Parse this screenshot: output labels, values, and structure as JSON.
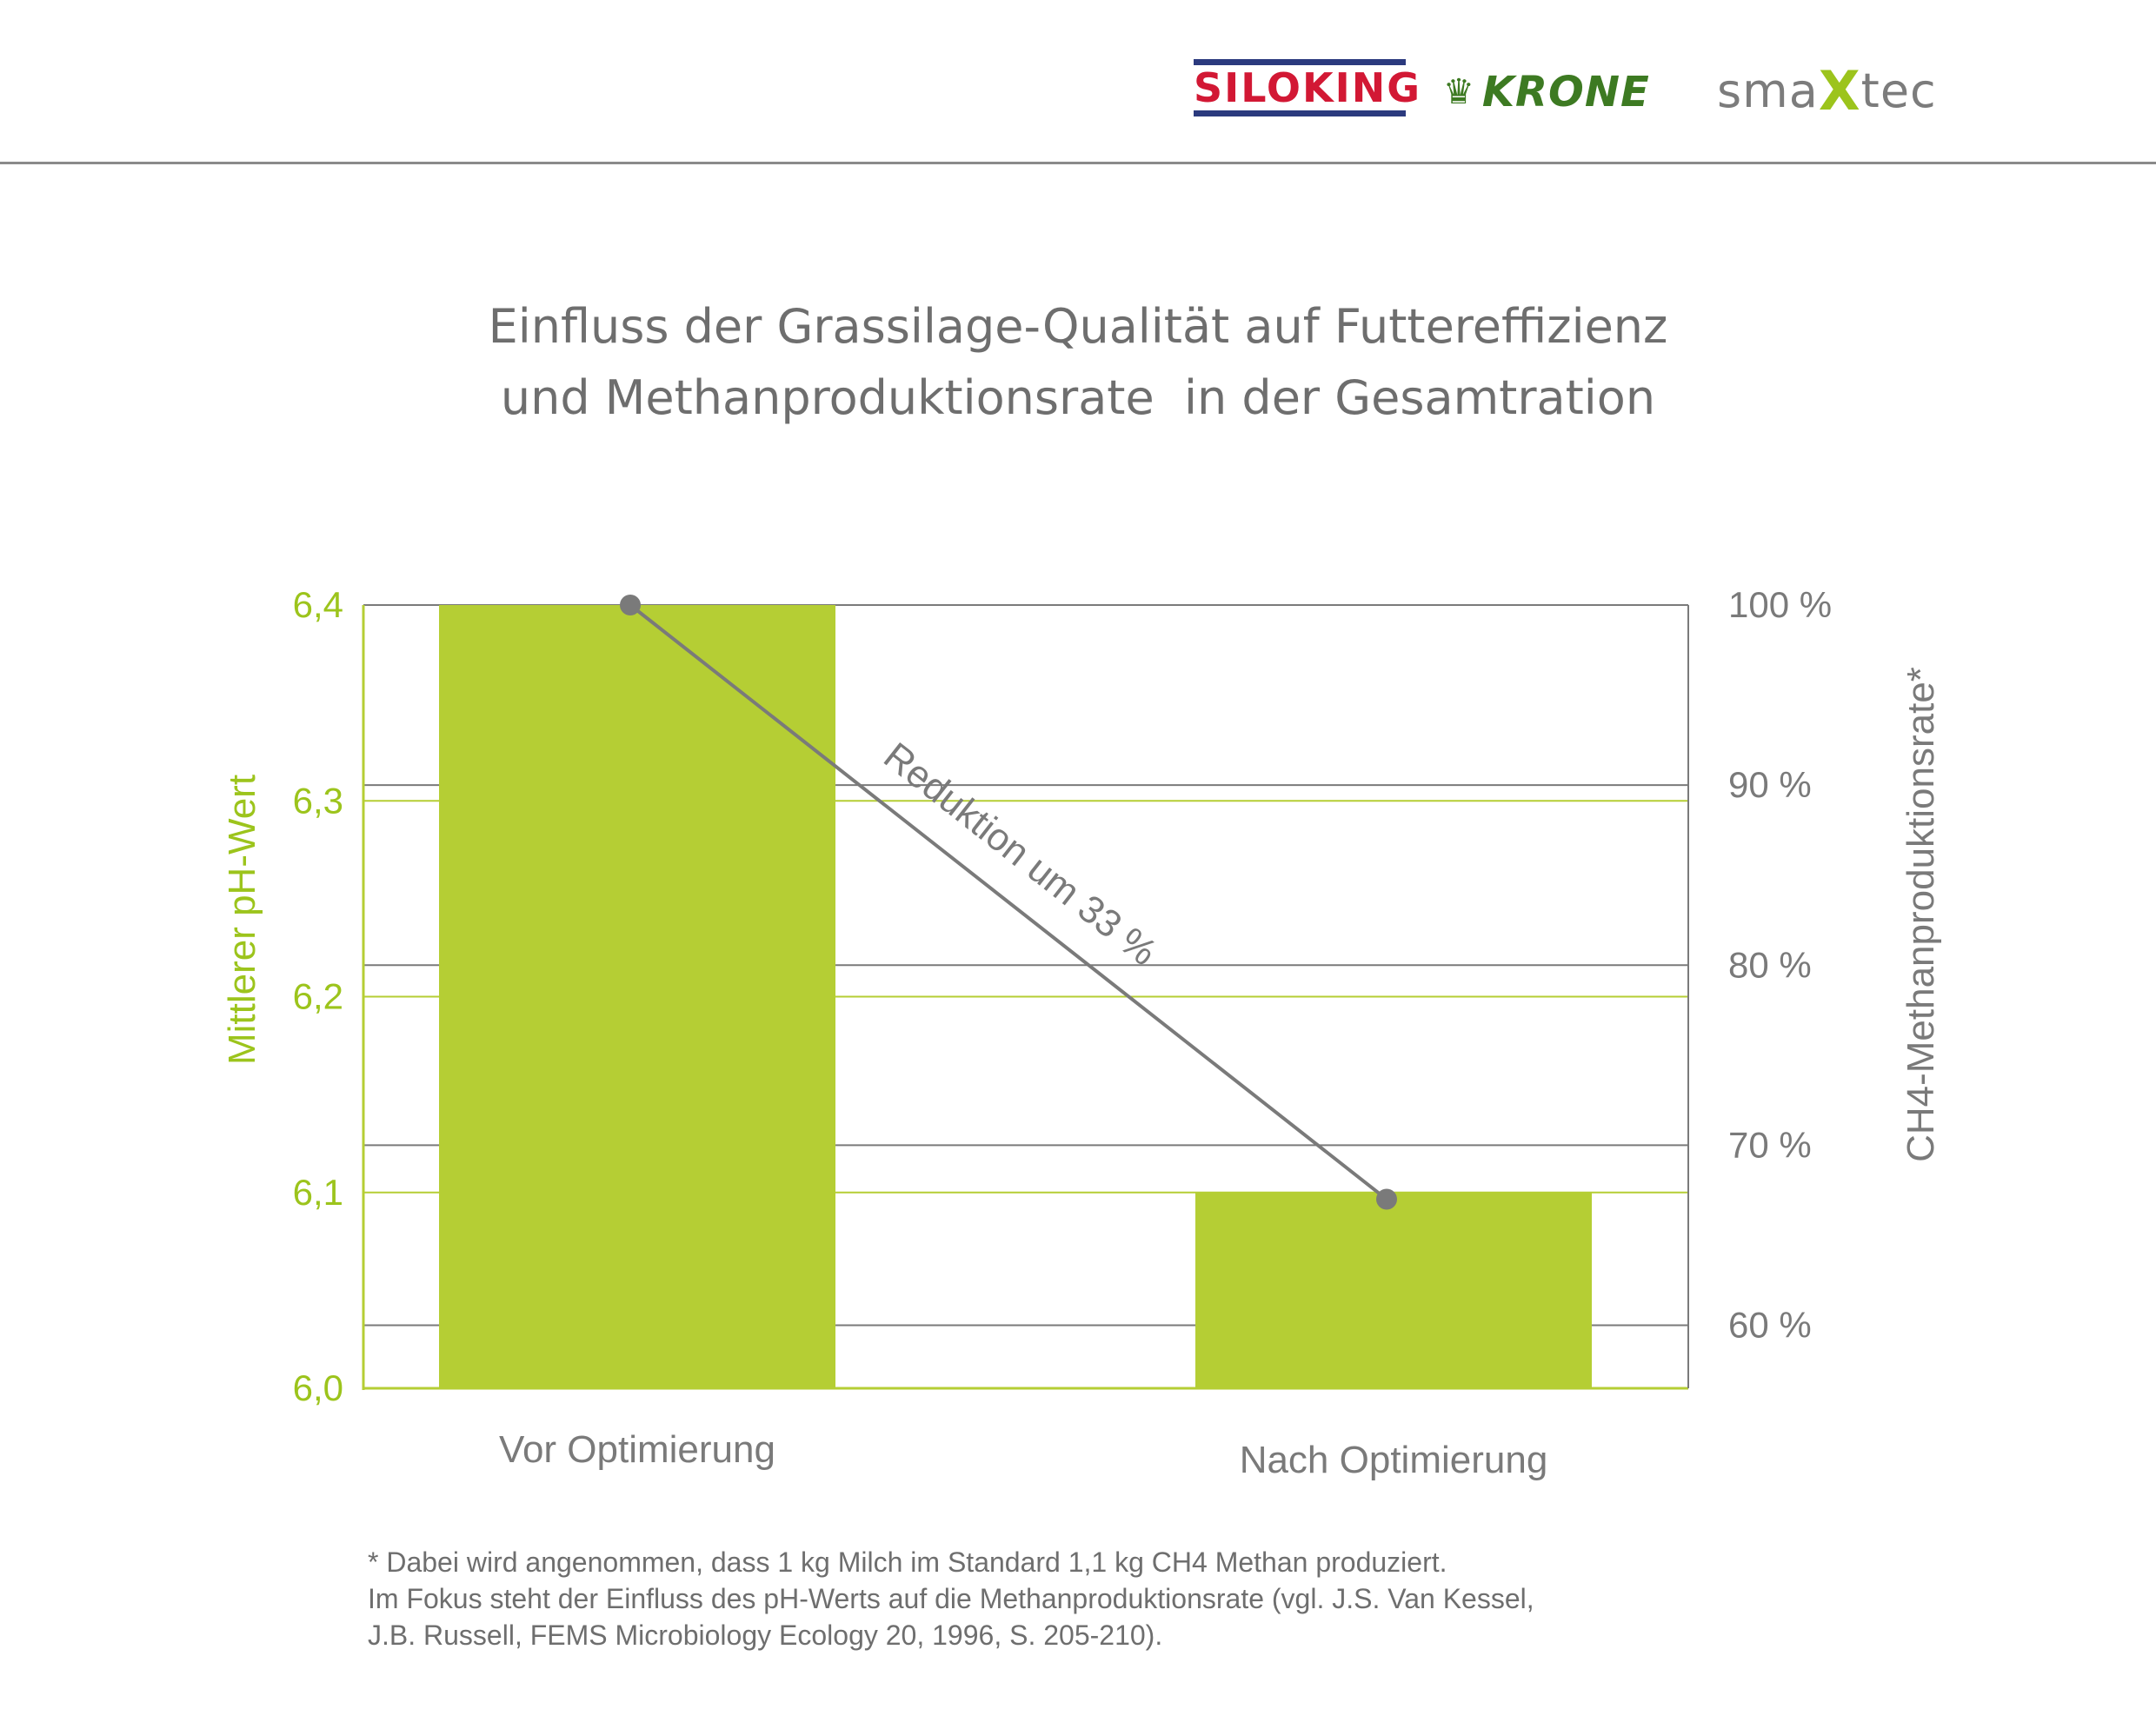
{
  "logos": {
    "siloking": "SILOKING",
    "krone": "KRONE",
    "krone_icon": "crown-icon",
    "smaxtec_a": "sma",
    "smaxtec_x": "X",
    "smaxtec_b": "tec"
  },
  "colors": {
    "green": "#b5ce34",
    "green_text": "#9cc41c",
    "gray": "#7a7a7a",
    "divider": "#8a8a8a"
  },
  "chart_data": {
    "type": "bar",
    "title_lines": [
      "Einfluss der Grassilage-Qualität auf Futtereffizienz",
      "und Methanproduktionsrate  in der Gesamtration"
    ],
    "categories": [
      "Vor Optimierung",
      "Nach Optimierung"
    ],
    "series": [
      {
        "axis": "left",
        "type": "bar",
        "values": [
          6.4,
          6.1
        ]
      },
      {
        "axis": "right",
        "type": "line",
        "values": [
          100,
          67
        ]
      }
    ],
    "left_axis": {
      "label": "Mittlerer pH-Wert",
      "ylim": [
        6.0,
        6.4
      ],
      "ticks": [
        6.0,
        6.1,
        6.2,
        6.3,
        6.4
      ],
      "tick_labels": [
        "6,0",
        "6,1",
        "6,2",
        "6,3",
        "6,4"
      ]
    },
    "right_axis": {
      "label": "CH4-Methanproduktionsrate*",
      "ylim": [
        56.5,
        100
      ],
      "ticks": [
        60,
        70,
        80,
        90,
        100
      ],
      "tick_labels": [
        "60 %",
        "70 %",
        "80 %",
        "90 %",
        "100 %"
      ]
    },
    "annotation": "Reduktion um 33 %",
    "grid": true
  },
  "footnote": [
    "* Dabei wird angenommen, dass 1 kg Milch im Standard 1,1 kg CH4 Methan produziert.",
    "Im Fokus steht der Einfluss des pH-Werts auf die Methanproduktionsrate (vgl. J.S. Van Kessel,",
    "J.B. Russell, FEMS Microbiology Ecology 20, 1996, S. 205-210)."
  ]
}
